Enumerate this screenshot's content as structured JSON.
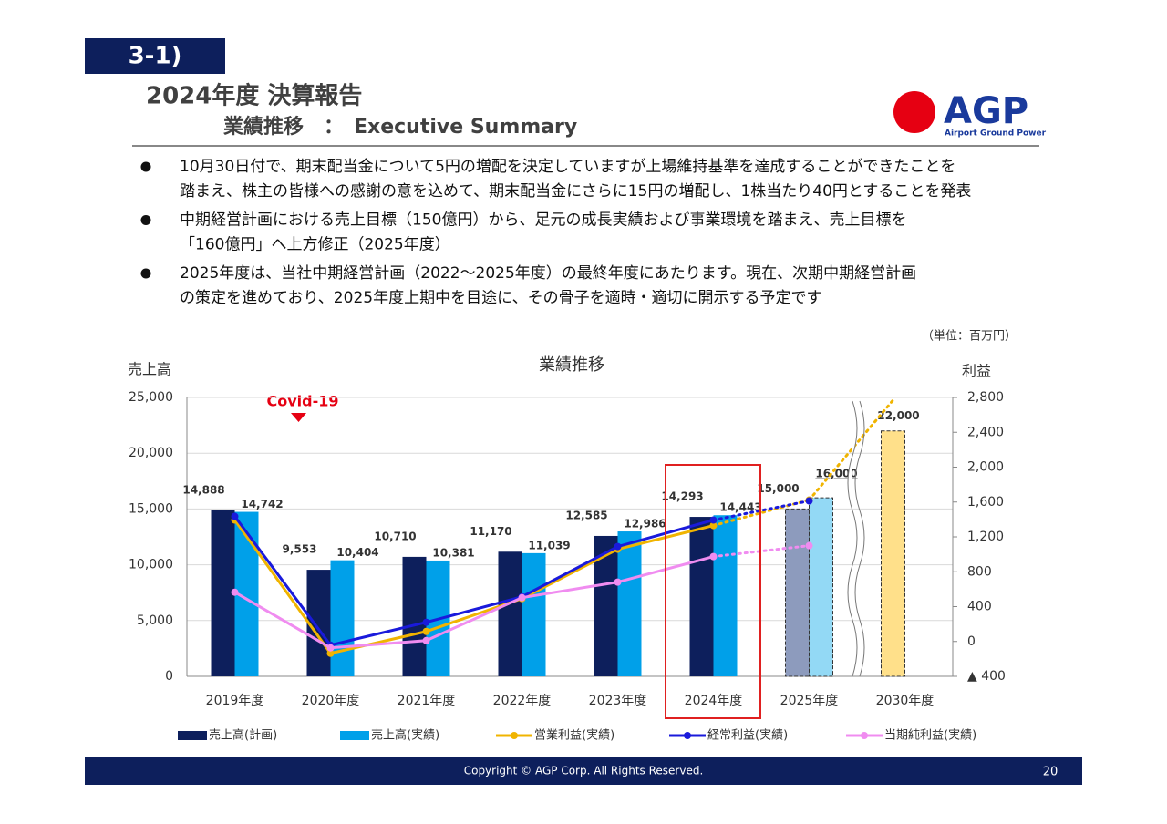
{
  "header": {
    "section": "3-1)",
    "title": "2024年度 決算報告",
    "subtitle": "業績推移　：　Executive Summary",
    "logo": "AGP",
    "logo_tagline": "Airport Ground Power"
  },
  "bullets": [
    [
      "10月30日付で、期末配当金について5円の増配を決定していますが上場維持基準を達成することができたことを",
      "踏まえ、株主の皆様への感謝の意を込めて、期末配当金にさらに15円の増配し、1株当たり40円とすることを発表"
    ],
    [
      "中期経営計画における売上目標（150億円）から、足元の成長実績および事業環境を踏まえ、売上目標を",
      "「160億円」へ上方修正（2025年度）"
    ],
    [
      "2025年度は、当社中期経営計画（2022～2025年度）の最終年度にあたります。現在、次期中期経営計画",
      "の策定を進めており、2025年度上期中を目途に、その骨子を適時・適切に開示する予定です"
    ]
  ],
  "unit_note": "（単位：百万円）",
  "chart_data": {
    "type": "bar_line",
    "title": "業績推移",
    "y_label": "売上高",
    "y2_label": "利益",
    "annotation": "Covid-19",
    "categories": [
      "2019年度",
      "2020年度",
      "2021年度",
      "2022年度",
      "2023年度",
      "2024年度",
      "2025年度",
      "2030年度"
    ],
    "forecast_start": "2025年度",
    "ylim": [
      0,
      25000
    ],
    "yticks": [
      0,
      {
        "value": 5000,
        "label": "5,000"
      },
      {
        "value": 10000,
        "label": "10,000"
      },
      {
        "value": 15000,
        "label": "15,000"
      },
      {
        "value": 20000,
        "label": "20,000"
      },
      {
        "value": 25000,
        "label": "25,000"
      }
    ],
    "y2lim": [
      -400,
      2800
    ],
    "y2ticks": [
      {
        "value": -400,
        "label": "▲ 400"
      },
      0,
      400,
      800,
      {
        "value": 1200,
        "label": "1,200"
      },
      {
        "value": 1600,
        "label": "1,600"
      },
      {
        "value": 2000,
        "label": "2,000"
      },
      {
        "value": 2400,
        "label": "2,400"
      },
      {
        "value": 2800,
        "label": "2,800"
      }
    ],
    "grid": true,
    "series": [
      {
        "name": "売上高(計画)",
        "kind": "bar",
        "color": "#0d1f5c",
        "colors": [
          "#0d1f5c",
          "#0d1f5c",
          "#0d1f5c",
          "#0d1f5c",
          "#0d1f5c",
          "#0d1f5c",
          "#8d9bbd",
          "#ffe08a"
        ],
        "values": [
          14888,
          9553,
          10710,
          11170,
          12585,
          14293,
          15000,
          22000
        ],
        "value_labels": [
          "14,888",
          "9,553",
          "10,710",
          "11,170",
          "12,585",
          "14,293",
          "15,000",
          "22,000"
        ]
      },
      {
        "name": "売上高(実績)",
        "kind": "bar",
        "color": "#00a0e9",
        "colors": [
          "#00a0e9",
          "#00a0e9",
          "#00a0e9",
          "#00a0e9",
          "#00a0e9",
          "#00a0e9",
          "#93d9f5",
          "#93d9f5"
        ],
        "values": [
          14742,
          10404,
          10381,
          11039,
          12986,
          14443,
          16000,
          null
        ],
        "value_labels": [
          "14,742",
          "10,404",
          "10,381",
          "11,039",
          "12,986",
          "14,443",
          "16,000",
          null
        ]
      },
      {
        "name": "営業利益(実績)",
        "kind": "line",
        "axis": "y2",
        "color": "#f0b400",
        "values": [
          1393,
          -136,
          115,
          492,
          1058,
          1330,
          1623,
          null
        ]
      },
      {
        "name": "経常利益(実績)",
        "kind": "line",
        "axis": "y2",
        "color": "#1a1adb",
        "values": [
          1435,
          -42,
          220,
          513,
          1089,
          1393,
          1613,
          null
        ]
      },
      {
        "name": "当期純利益(実績)",
        "kind": "line",
        "axis": "y2",
        "color": "#f08cf0",
        "values": [
          565,
          -73,
          10,
          503,
          681,
          974,
          1099,
          null
        ]
      }
    ]
  },
  "footer": {
    "copyright": "Copyright © AGP Corp. All Rights Reserved.",
    "page": "20"
  }
}
